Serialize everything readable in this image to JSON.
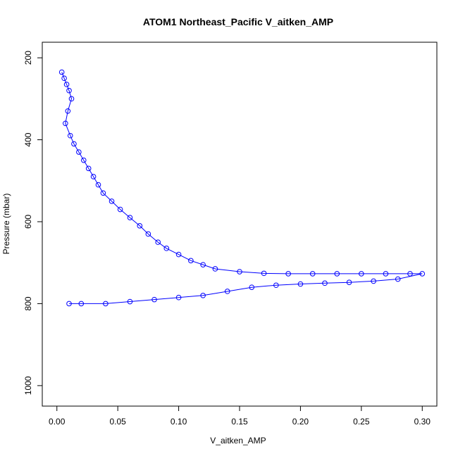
{
  "chart_data": {
    "type": "scatter",
    "title": "ATOM1 Northeast_Pacific V_aitken_AMP",
    "xlabel": "V_aitken_AMP",
    "ylabel": "Pressure (mbar)",
    "xlim": [
      -0.012,
      0.312
    ],
    "ylim": [
      1050,
      162
    ],
    "y_reversed": true,
    "x_ticks": [
      "0.00",
      "0.05",
      "0.10",
      "0.15",
      "0.20",
      "0.25",
      "0.30"
    ],
    "x_tick_values": [
      0,
      0.05,
      0.1,
      0.15,
      0.2,
      0.25,
      0.3
    ],
    "y_ticks": [
      "200",
      "400",
      "600",
      "800",
      "1000"
    ],
    "y_tick_values": [
      200,
      400,
      600,
      800,
      1000
    ],
    "series_color": "#0000ff",
    "marker": "open-circle",
    "connected": true,
    "grid": false,
    "legend": "none",
    "series": [
      {
        "x": [
          0.004,
          0.006,
          0.008,
          0.01,
          0.012,
          0.009,
          0.007,
          0.011,
          0.014,
          0.018,
          0.022,
          0.026,
          0.03,
          0.034,
          0.038,
          0.045,
          0.052,
          0.06,
          0.068,
          0.075,
          0.083,
          0.09,
          0.1,
          0.11,
          0.12,
          0.13,
          0.15,
          0.17,
          0.19,
          0.21,
          0.23,
          0.25,
          0.27,
          0.29,
          0.3,
          0.28,
          0.26,
          0.24,
          0.22,
          0.2,
          0.18,
          0.16,
          0.14,
          0.12,
          0.1,
          0.08,
          0.06,
          0.04,
          0.02,
          0.01
        ],
        "y": [
          235,
          250,
          265,
          280,
          300,
          330,
          360,
          390,
          410,
          430,
          450,
          470,
          490,
          510,
          530,
          550,
          570,
          590,
          610,
          630,
          650,
          665,
          680,
          695,
          705,
          715,
          722,
          726,
          727,
          727,
          727,
          727,
          727,
          727,
          727,
          740,
          745,
          748,
          750,
          752,
          755,
          760,
          770,
          780,
          785,
          790,
          795,
          800,
          800,
          800
        ]
      }
    ]
  }
}
